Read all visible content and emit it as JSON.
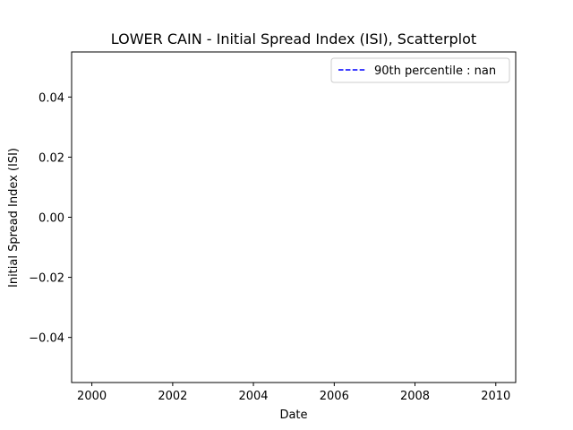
{
  "chart_data": {
    "type": "scatter",
    "title": "LOWER CAIN - Initial Spread Index (ISI), Scatterplot",
    "xlabel": "Date",
    "ylabel": "Initial Spread Index (ISI)",
    "x_scale": "date",
    "xlim": [
      "1999-07-02",
      "2010-06-30"
    ],
    "ylim": [
      -0.055,
      0.055
    ],
    "xticks": [
      "2000",
      "2002",
      "2004",
      "2006",
      "2008",
      "2010"
    ],
    "yticks": [
      "0.04",
      "0.02",
      "0.00",
      "−0.02",
      "−0.04"
    ],
    "grid": false,
    "legend_position": "upper-right",
    "series": [
      {
        "name": "90th percentile : nan",
        "style": "dashed-line",
        "color": "#0000ff",
        "values": []
      }
    ],
    "points": []
  }
}
